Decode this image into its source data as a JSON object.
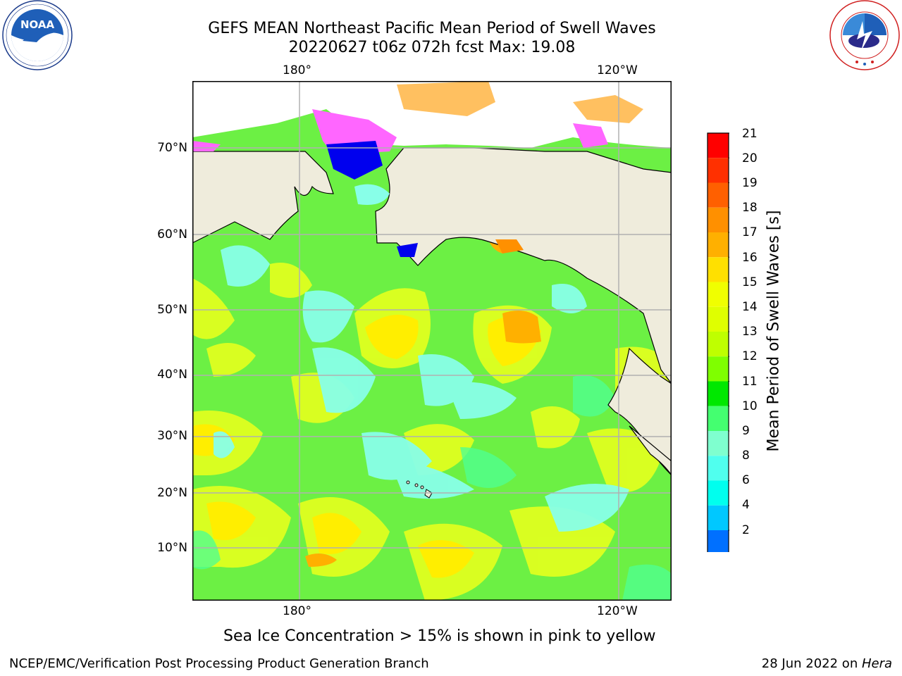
{
  "header": {
    "title_line1": "GEFS MEAN Northeast Pacific Mean Period of Swell Waves",
    "title_line2": "20220627 t06z 072h fcst   Max: 19.08"
  },
  "logos": {
    "left": {
      "text": "NOAA",
      "ring_text": "NATIONAL OCEANIC AND ATMOSPHERIC ADMINISTRATION · U.S. DEPARTMENT OF COMMERCE"
    },
    "right": {
      "ring_text": "NATIONAL WEATHER SERVICE"
    }
  },
  "map": {
    "lon_ticks_top": [
      "180°",
      "120°W"
    ],
    "lon_ticks_bottom": [
      "180°",
      "120°W"
    ],
    "lat_ticks": [
      "70°N",
      "60°N",
      "50°N",
      "40°N",
      "30°N",
      "20°N",
      "10°N"
    ],
    "colors": {
      "land": "#efecdc",
      "ocean_base": "#6cf044",
      "gridline": "#b0b0b0"
    }
  },
  "colorbar": {
    "label": "Mean Period of Swell Waves [s]",
    "tick_labels": [
      "21",
      "20",
      "19",
      "18",
      "17",
      "16",
      "15",
      "14",
      "13",
      "12",
      "11",
      "10",
      "9",
      "8",
      "6",
      "4",
      "2"
    ],
    "colors_top_to_bottom": [
      "#ff0000",
      "#ff3000",
      "#ff6000",
      "#ff9000",
      "#ffb000",
      "#ffe000",
      "#f0ff00",
      "#dfff00",
      "#bfff00",
      "#7fff00",
      "#00e800",
      "#44ff70",
      "#7fffcf",
      "#50ffee",
      "#00ffee",
      "#00c8ff",
      "#0070ff"
    ],
    "extend_color": "#0000ee"
  },
  "notes": {
    "sea_ice": "Sea Ice Concentration > 15% is shown in pink to yellow"
  },
  "footer": {
    "left": "NCEP/EMC/Verification Post Processing Product Generation Branch",
    "date": "28 Jun 2022 on ",
    "host": "Hera"
  }
}
